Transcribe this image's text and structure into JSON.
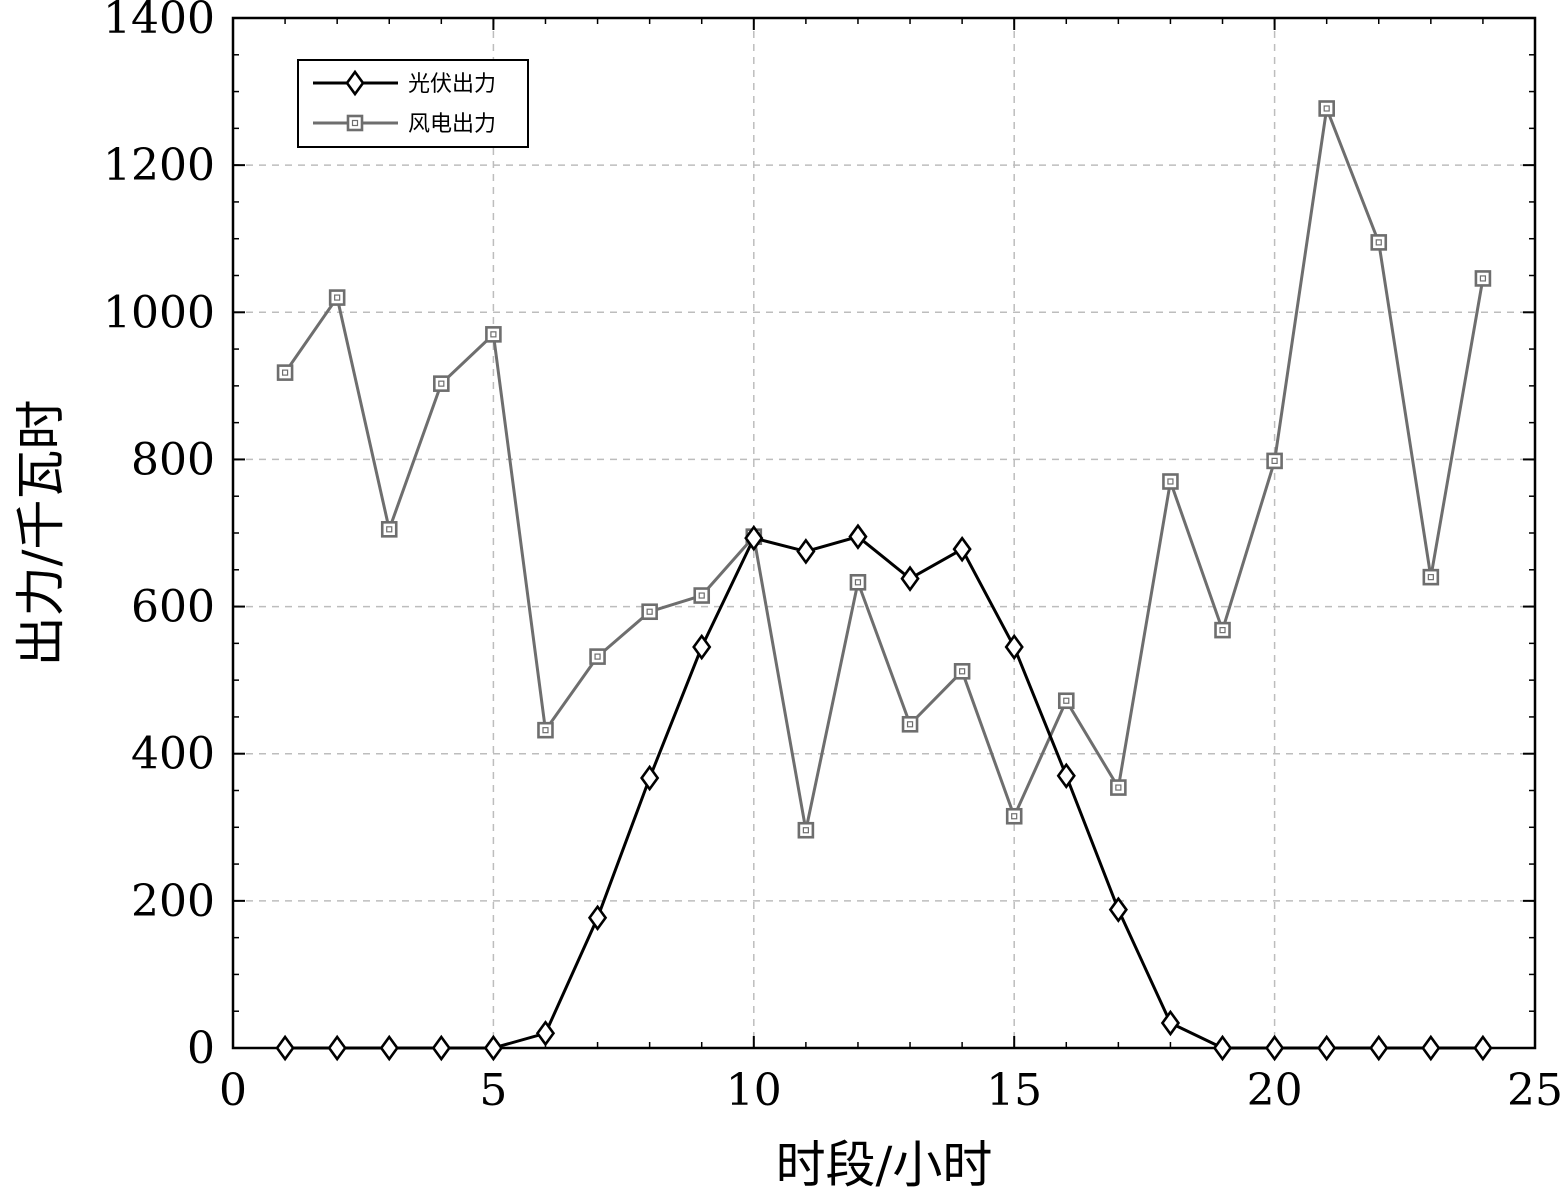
{
  "chart_data": {
    "type": "line",
    "xlabel": "时段/小时",
    "ylabel": "出力/千瓦时",
    "xlim": [
      0,
      25
    ],
    "ylim": [
      0,
      1400
    ],
    "xticks": [
      0,
      5,
      10,
      15,
      20,
      25
    ],
    "yticks": [
      0,
      200,
      400,
      600,
      800,
      1000,
      1200,
      1400
    ],
    "grid": true,
    "legend_position": "top-left",
    "x": [
      1,
      2,
      3,
      4,
      5,
      6,
      7,
      8,
      9,
      10,
      11,
      12,
      13,
      14,
      15,
      16,
      17,
      18,
      19,
      20,
      21,
      22,
      23,
      24
    ],
    "series": [
      {
        "name": "光伏出力",
        "marker": "diamond",
        "color": "#000000",
        "values": [
          0,
          0,
          0,
          0,
          0,
          20,
          177,
          367,
          545,
          693,
          675,
          695,
          638,
          678,
          545,
          370,
          188,
          34,
          0,
          0,
          0,
          0,
          0,
          0
        ]
      },
      {
        "name": "风电出力",
        "marker": "square",
        "color": "#6e6e6e",
        "values": [
          918,
          1020,
          705,
          903,
          970,
          432,
          532,
          593,
          615,
          695,
          296,
          633,
          440,
          512,
          315,
          472,
          354,
          770,
          568,
          798,
          1277,
          1095,
          640,
          1046
        ]
      }
    ]
  }
}
